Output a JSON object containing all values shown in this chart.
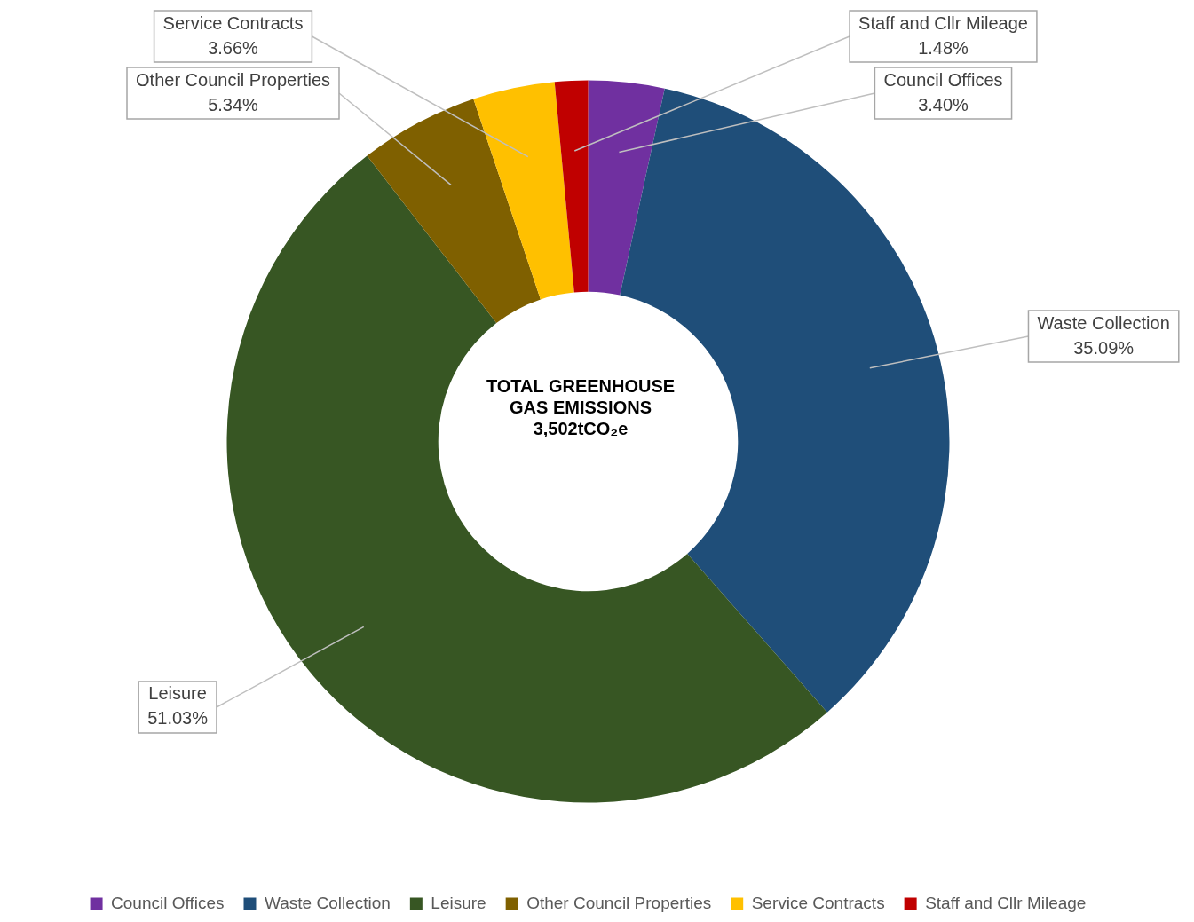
{
  "chart_data": {
    "type": "donut",
    "categories": [
      "Council Offices",
      "Waste Collection",
      "Leisure",
      "Other Council Properties",
      "Service Contracts",
      "Staff and Cllr Mileage"
    ],
    "values": [
      3.4,
      35.09,
      51.03,
      5.34,
      3.66,
      1.48
    ],
    "value_labels": [
      "3.40%",
      "35.09%",
      "51.03%",
      "5.34%",
      "3.66%",
      "1.48%"
    ],
    "colors": [
      "#7030a0",
      "#1f4e79",
      "#375623",
      "#7f6000",
      "#ffc000",
      "#c00000"
    ],
    "annotations": [
      "TOTAL GREENHOUSE GAS EMISSIONS",
      "3,502tCO₂e"
    ],
    "legend": "bottom"
  }
}
